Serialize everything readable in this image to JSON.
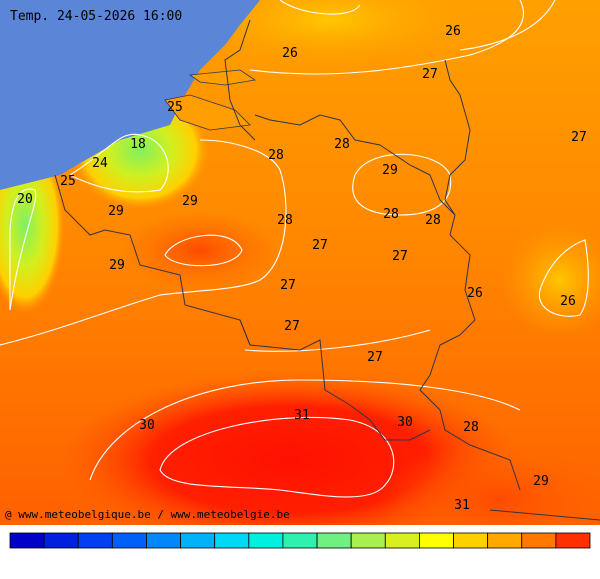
{
  "title": "Temp. 24-05-2026 16:00",
  "credit": "@ www.meteobelgique.be / www.meteobelgie.be",
  "contour_labels": [
    26,
    26,
    27,
    25,
    27,
    18,
    28,
    24,
    28,
    29,
    25,
    20,
    29,
    29,
    28,
    28,
    28,
    27,
    27,
    29,
    27,
    26,
    26,
    27,
    27,
    31,
    30,
    30,
    28,
    29,
    31
  ],
  "colorbar": [
    "#0000c8",
    "#0020e0",
    "#0040f0",
    "#0060f8",
    "#0088f8",
    "#00b0f8",
    "#00d8f8",
    "#00f0e0",
    "#30f0b0",
    "#70f080",
    "#a8f050",
    "#d8f020",
    "#ffff00",
    "#ffd000",
    "#ffa800",
    "#ff7800",
    "#ff3000"
  ]
}
